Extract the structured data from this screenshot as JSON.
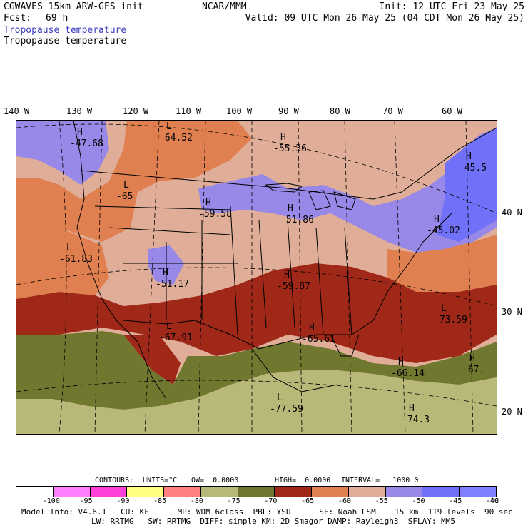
{
  "header": {
    "model": "CGWAVES 15km ARW-GFS init",
    "fcst_label": "Fcst:",
    "fcst_value": "69 h",
    "org": "NCAR/MMM",
    "init": "Init: 12 UTC Fri 23 May 25",
    "valid": "Valid: 09 UTC Mon 26 May 25 (04 CDT Mon 26 May 25)",
    "field_color_title": "Tropopause temperature",
    "field_contour_title": "Tropopause temperature",
    "field_color_title_color": "#4040c0"
  },
  "longitudes": [
    "140 W",
    "130 W",
    "120 W",
    "110 W",
    "100 W",
    "90 W",
    "80 W",
    "70 W",
    "60 W"
  ],
  "latitudes": [
    "40 N",
    "30 N",
    "20 N"
  ],
  "map_labels": [
    {
      "type": "H",
      "value": "-47.68"
    },
    {
      "type": "L",
      "value": "-64.52"
    },
    {
      "type": "H",
      "value": "-55.36"
    },
    {
      "type": "H",
      "value": "-45.5"
    },
    {
      "type": "L",
      "value": "-65"
    },
    {
      "type": "H",
      "value": "-59.58"
    },
    {
      "type": "H",
      "value": "-51.86"
    },
    {
      "type": "H",
      "value": "-45.02"
    },
    {
      "type": "L",
      "value": "-61.83"
    },
    {
      "type": "H",
      "value": "-51.17"
    },
    {
      "type": "H",
      "value": "-59.87"
    },
    {
      "type": "L",
      "value": "-73.59"
    },
    {
      "type": "L",
      "value": "-67.91"
    },
    {
      "type": "H",
      "value": "-65.61"
    },
    {
      "type": "H",
      "value": "-66.14"
    },
    {
      "type": "H",
      "value": "-67."
    },
    {
      "type": "L",
      "value": "-77.59"
    },
    {
      "type": "H",
      "value": "-74.3"
    }
  ],
  "contour_info": {
    "contours": "CONTOURS:",
    "units": "UNITS=°C",
    "low": "LOW=  0.0000",
    "high": "HIGH=  0.0000",
    "interval": "INTERVAL=   1000.0"
  },
  "colorbar": {
    "colors": [
      "#ffffff",
      "#ff80ff",
      "#ff40d8",
      "#ffff80",
      "#ff8080",
      "#b8b878",
      "#707830",
      "#a02818",
      "#e08050",
      "#e0ae98",
      "#9888e8",
      "#7070f8",
      "#8080ff"
    ],
    "ticks": [
      "-100",
      "-95",
      "-90",
      "-85",
      "-80",
      "-75",
      "-70",
      "-65",
      "-60",
      "-55",
      "-50",
      "-45",
      "-40"
    ],
    "unit": "°C"
  },
  "footer": {
    "line1": "Model Info: V4.6.1   CU: KF      MP: WDM 6class  PBL: YSU      SF: Noah LSM    15 km  119 levels  90 sec",
    "line2": "LW: RRTMG   SW: RRTMG  DIFF: simple KM: 2D Smagor DAMP: Rayleigh3  SFLAY: MM5"
  }
}
